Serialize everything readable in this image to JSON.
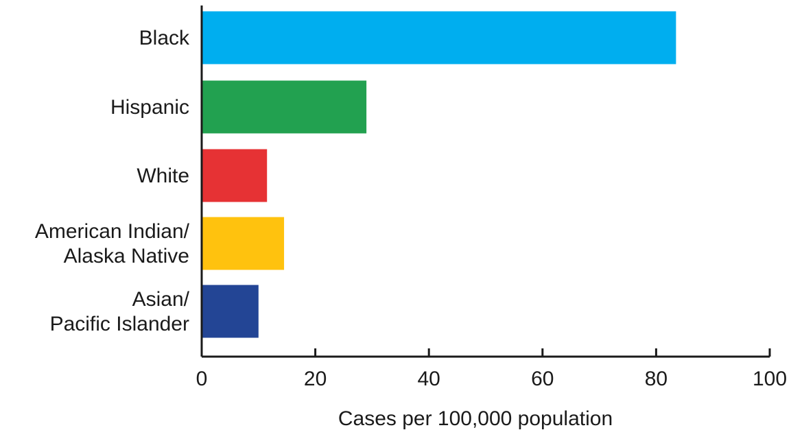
{
  "chart_data": {
    "type": "bar",
    "orientation": "horizontal",
    "title": "",
    "xlabel": "Cases per 100,000 population",
    "ylabel": "",
    "xlim": [
      0,
      100
    ],
    "ticks": [
      "0",
      "20",
      "40",
      "60",
      "80",
      "100"
    ],
    "grid": false,
    "categories": [
      {
        "lines": [
          "Black"
        ],
        "value": 83.5,
        "color": "#00aeef"
      },
      {
        "lines": [
          "Hispanic"
        ],
        "value": 29,
        "color": "#22a150"
      },
      {
        "lines": [
          "White"
        ],
        "value": 11.5,
        "color": "#e63234"
      },
      {
        "lines": [
          "American Indian/",
          "Alaska Native"
        ],
        "value": 14.5,
        "color": "#ffc20e"
      },
      {
        "lines": [
          "Asian/",
          "Pacific Islander"
        ],
        "value": 10,
        "color": "#234595"
      }
    ]
  }
}
